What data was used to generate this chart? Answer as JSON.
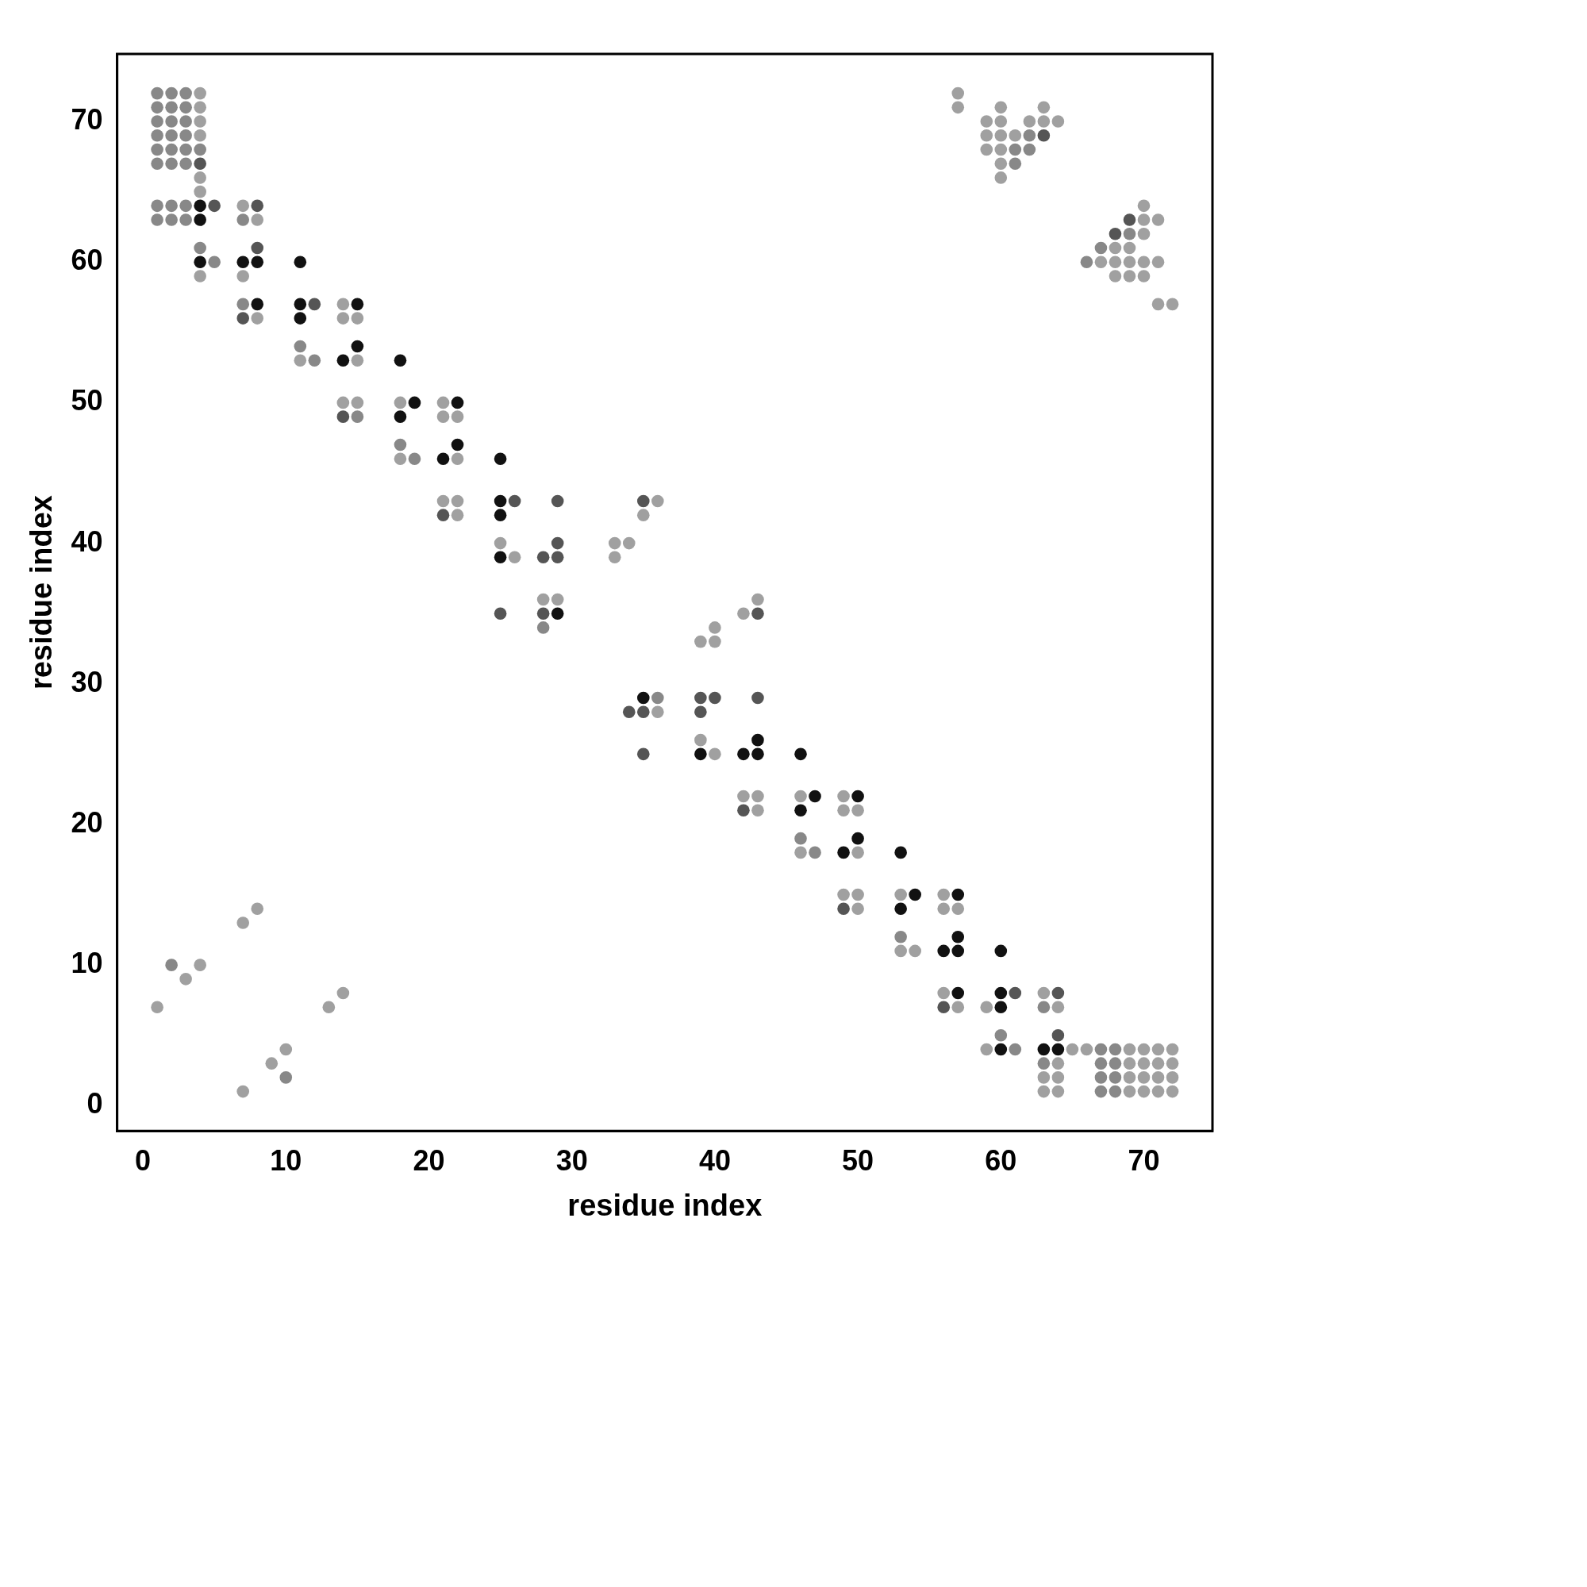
{
  "chart_data": {
    "type": "scatter",
    "xlabel": "residue index",
    "ylabel": "residue index",
    "xlim": [
      -1.8,
      74.8
    ],
    "ylim": [
      -1.8,
      74.8
    ],
    "xticks": [
      0,
      10,
      20,
      30,
      40,
      50,
      60,
      70
    ],
    "yticks": [
      0,
      10,
      20,
      30,
      40,
      50,
      60,
      70
    ],
    "grid": false,
    "legend": false,
    "marker": "circle",
    "series": [
      {
        "color": "#a0a0a0",
        "x": [
          4,
          4,
          4,
          4,
          4,
          4,
          4,
          7,
          7,
          8,
          8,
          11,
          14,
          14,
          14,
          15,
          15,
          15,
          18,
          18,
          21,
          21,
          21,
          22,
          22,
          22,
          22,
          25,
          26,
          28,
          29,
          33,
          33,
          34,
          35,
          36,
          36,
          39,
          39,
          40,
          40,
          40,
          42,
          42,
          43,
          43,
          43,
          46,
          46,
          49,
          49,
          49,
          50,
          50,
          50,
          50,
          53,
          53,
          54,
          56,
          56,
          56,
          57,
          57,
          59,
          59,
          63,
          63,
          63,
          64,
          64,
          64,
          64,
          65,
          66,
          69,
          69,
          69,
          69,
          70,
          70,
          70,
          70,
          71,
          71,
          71,
          71,
          72,
          72,
          72,
          72,
          1,
          3,
          4,
          7,
          8,
          7,
          9,
          10,
          13,
          14,
          57,
          57,
          59,
          59,
          59,
          60,
          60,
          60,
          60,
          60,
          60,
          61,
          62,
          63,
          63,
          64,
          67,
          68,
          68,
          68,
          69,
          69,
          69,
          70,
          70,
          70,
          70,
          70,
          71,
          71,
          71,
          72
        ],
        "values": [
          72,
          71,
          70,
          69,
          66,
          65,
          59,
          64,
          59,
          63,
          56,
          53,
          57,
          56,
          50,
          56,
          53,
          50,
          50,
          46,
          50,
          49,
          43,
          49,
          46,
          43,
          42,
          40,
          39,
          36,
          36,
          40,
          39,
          40,
          42,
          43,
          28,
          33,
          26,
          34,
          33,
          25,
          35,
          22,
          36,
          22,
          21,
          22,
          18,
          22,
          21,
          15,
          21,
          18,
          15,
          14,
          15,
          11,
          11,
          15,
          14,
          8,
          14,
          7,
          7,
          4,
          8,
          2,
          1,
          7,
          3,
          2,
          1,
          4,
          4,
          1,
          2,
          3,
          4,
          1,
          2,
          3,
          4,
          1,
          2,
          3,
          4,
          1,
          2,
          3,
          4,
          7,
          9,
          10,
          13,
          14,
          1,
          3,
          4,
          7,
          8,
          72,
          71,
          70,
          69,
          68,
          71,
          70,
          69,
          68,
          67,
          66,
          69,
          70,
          71,
          70,
          70,
          60,
          61,
          60,
          59,
          61,
          60,
          59,
          64,
          63,
          62,
          60,
          59,
          63,
          60,
          57,
          57
        ]
      },
      {
        "color": "#888888",
        "x": [
          1,
          1,
          1,
          1,
          1,
          1,
          2,
          2,
          2,
          2,
          2,
          2,
          3,
          3,
          3,
          3,
          3,
          3,
          1,
          1,
          2,
          2,
          3,
          3,
          4,
          4,
          5,
          7,
          7,
          11,
          12,
          15,
          18,
          19,
          28,
          36,
          46,
          47,
          53,
          60,
          61,
          63,
          63,
          67,
          67,
          67,
          67,
          68,
          68,
          68,
          68,
          2,
          10,
          61,
          61,
          62,
          62,
          66,
          67,
          69
        ],
        "values": [
          72,
          71,
          70,
          69,
          68,
          67,
          72,
          71,
          70,
          69,
          68,
          67,
          72,
          71,
          70,
          69,
          68,
          67,
          64,
          63,
          64,
          63,
          64,
          63,
          68,
          61,
          60,
          63,
          57,
          54,
          53,
          49,
          47,
          46,
          34,
          29,
          19,
          18,
          12,
          5,
          4,
          7,
          3,
          4,
          3,
          2,
          1,
          4,
          3,
          2,
          1,
          10,
          2,
          68,
          67,
          69,
          68,
          60,
          61,
          62
        ]
      },
      {
        "color": "#555555",
        "x": [
          4,
          5,
          7,
          8,
          8,
          12,
          14,
          21,
          25,
          26,
          28,
          28,
          29,
          29,
          29,
          34,
          35,
          35,
          35,
          39,
          39,
          40,
          42,
          43,
          43,
          49,
          56,
          61,
          64,
          64,
          63,
          68,
          69
        ],
        "values": [
          67,
          64,
          56,
          64,
          61,
          57,
          49,
          42,
          35,
          43,
          39,
          35,
          43,
          40,
          39,
          28,
          43,
          28,
          25,
          29,
          28,
          29,
          21,
          35,
          29,
          14,
          7,
          8,
          8,
          5,
          69,
          62,
          63
        ]
      },
      {
        "color": "#111111",
        "x": [
          4,
          4,
          4,
          7,
          8,
          8,
          11,
          11,
          11,
          14,
          15,
          15,
          18,
          18,
          19,
          21,
          22,
          22,
          25,
          25,
          25,
          25,
          29,
          35,
          39,
          42,
          43,
          43,
          46,
          46,
          47,
          49,
          50,
          50,
          53,
          53,
          54,
          56,
          57,
          57,
          57,
          57,
          60,
          60,
          60,
          60,
          63,
          64
        ],
        "values": [
          64,
          63,
          60,
          60,
          60,
          57,
          60,
          57,
          56,
          53,
          57,
          54,
          53,
          49,
          50,
          46,
          50,
          47,
          46,
          43,
          42,
          39,
          35,
          29,
          25,
          25,
          26,
          25,
          25,
          21,
          22,
          18,
          22,
          19,
          18,
          14,
          15,
          11,
          15,
          12,
          11,
          8,
          11,
          8,
          7,
          4,
          4,
          4
        ]
      }
    ]
  }
}
